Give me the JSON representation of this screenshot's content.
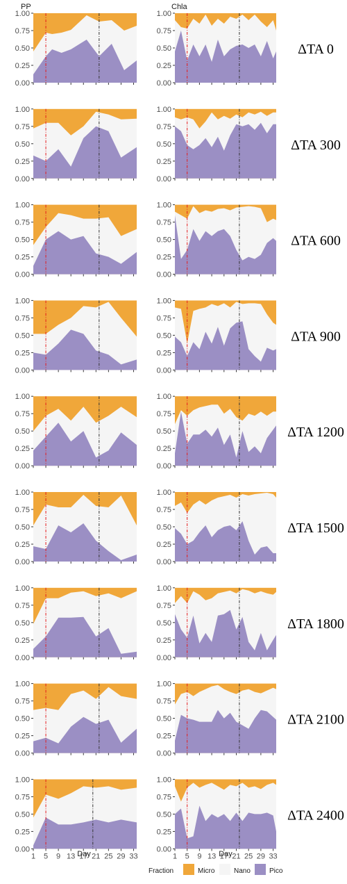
{
  "chart_data": {
    "type": "area",
    "stacked": true,
    "normalized": true,
    "column_titles": [
      "PP",
      "Chla"
    ],
    "xlabel": "Day",
    "x_ticks": [
      1,
      5,
      9,
      13,
      17,
      21,
      25,
      29,
      33
    ],
    "y_ticks": [
      "0.00",
      "0.25",
      "0.50",
      "0.75",
      "1.00"
    ],
    "xlim": [
      1,
      34
    ],
    "ylim": [
      0,
      1
    ],
    "legend": {
      "title": "Fraction",
      "position": "bottom",
      "entries": [
        "Micro",
        "Nano",
        "Pico"
      ]
    },
    "colors": {
      "Micro": "#f0a73a",
      "Nano": "#f5f5f5",
      "Pico": "#9b8fc4",
      "red_line": "#e41a1c",
      "black_line": "#333333"
    },
    "rows": [
      {
        "label": "ΔTA 0",
        "panels": [
          {
            "x": [
              1,
              5,
              7,
              10,
              13,
              18,
              22,
              26,
              30,
              34
            ],
            "pico": [
              0.12,
              0.38,
              0.48,
              0.43,
              0.48,
              0.62,
              0.38,
              0.56,
              0.18,
              0.32
            ],
            "pico_nano": [
              0.45,
              0.72,
              0.7,
              0.72,
              0.76,
              0.97,
              0.88,
              0.9,
              0.75,
              0.82
            ],
            "red_line": 5,
            "black_line": 22
          },
          {
            "x": [
              1,
              3,
              5,
              7,
              9,
              11,
              13,
              15,
              17,
              19,
              21,
              23,
              25,
              27,
              29,
              31,
              33,
              34
            ],
            "pico": [
              0.45,
              0.75,
              0.32,
              0.55,
              0.38,
              0.55,
              0.3,
              0.62,
              0.38,
              0.48,
              0.53,
              0.55,
              0.5,
              0.55,
              0.38,
              0.6,
              0.35,
              0.45
            ],
            "pico_nano": [
              0.9,
              0.8,
              0.78,
              0.92,
              0.85,
              0.98,
              0.82,
              0.92,
              0.85,
              0.95,
              0.92,
              0.98,
              0.9,
              0.98,
              0.88,
              0.8,
              0.9,
              0.75
            ],
            "red_line": 5,
            "black_line": 22
          }
        ]
      },
      {
        "label": "ΔTA 300",
        "panels": [
          {
            "x": [
              1,
              5,
              9,
              13,
              17,
              21,
              25,
              29,
              34
            ],
            "pico": [
              0.33,
              0.25,
              0.42,
              0.17,
              0.58,
              0.75,
              0.68,
              0.3,
              0.45
            ],
            "pico_nano": [
              0.72,
              0.8,
              0.8,
              0.62,
              0.75,
              0.96,
              0.92,
              0.85,
              0.86
            ],
            "red_line": 5,
            "black_line": 22
          },
          {
            "x": [
              1,
              3,
              5,
              7,
              9,
              11,
              13,
              15,
              17,
              19,
              21,
              23,
              25,
              27,
              29,
              31,
              33,
              34
            ],
            "pico": [
              0.75,
              0.68,
              0.48,
              0.42,
              0.48,
              0.58,
              0.45,
              0.6,
              0.4,
              0.62,
              0.78,
              0.75,
              0.78,
              0.7,
              0.8,
              0.65,
              0.78,
              0.78
            ],
            "pico_nano": [
              0.88,
              0.85,
              0.88,
              0.85,
              0.72,
              0.82,
              0.95,
              0.85,
              0.9,
              0.86,
              0.92,
              0.88,
              0.95,
              0.92,
              0.96,
              0.9,
              0.95,
              0.95
            ],
            "red_line": 5,
            "black_line": 22
          }
        ]
      },
      {
        "label": "ΔTA 600",
        "panels": [
          {
            "x": [
              1,
              5,
              9,
              13,
              17,
              21,
              25,
              29,
              34
            ],
            "pico": [
              0.12,
              0.5,
              0.62,
              0.5,
              0.55,
              0.3,
              0.25,
              0.15,
              0.32
            ],
            "pico_nano": [
              0.42,
              0.68,
              0.88,
              0.85,
              0.8,
              0.8,
              0.82,
              0.55,
              0.65
            ],
            "red_line": 5,
            "black_line": 22
          },
          {
            "x": [
              1,
              3,
              5,
              7,
              9,
              11,
              13,
              15,
              17,
              19,
              21,
              23,
              25,
              27,
              29,
              31,
              33,
              34
            ],
            "pico": [
              0.85,
              0.22,
              0.35,
              0.65,
              0.48,
              0.62,
              0.55,
              0.62,
              0.65,
              0.55,
              0.35,
              0.2,
              0.25,
              0.22,
              0.28,
              0.45,
              0.52,
              0.48
            ],
            "pico_nano": [
              0.9,
              0.85,
              0.8,
              0.98,
              0.88,
              0.92,
              0.9,
              0.94,
              0.95,
              0.92,
              0.96,
              0.97,
              0.98,
              0.97,
              0.95,
              0.75,
              0.8,
              0.78
            ],
            "red_line": 5,
            "black_line": 22
          }
        ]
      },
      {
        "label": "ΔTA 900",
        "panels": [
          {
            "x": [
              1,
              5,
              9,
              13,
              17,
              21,
              25,
              29,
              34
            ],
            "pico": [
              0.25,
              0.22,
              0.38,
              0.58,
              0.52,
              0.28,
              0.22,
              0.08,
              0.15
            ],
            "pico_nano": [
              0.52,
              0.52,
              0.65,
              0.75,
              0.92,
              0.9,
              0.98,
              0.75,
              0.48
            ],
            "red_line": 5,
            "black_line": 22
          },
          {
            "x": [
              1,
              3,
              5,
              7,
              9,
              11,
              13,
              15,
              17,
              19,
              21,
              23,
              25,
              27,
              29,
              31,
              33,
              34
            ],
            "pico": [
              0.48,
              0.4,
              0.2,
              0.4,
              0.3,
              0.55,
              0.38,
              0.62,
              0.35,
              0.6,
              0.68,
              0.7,
              0.3,
              0.2,
              0.12,
              0.32,
              0.28,
              0.3
            ],
            "pico_nano": [
              0.9,
              0.88,
              0.38,
              0.85,
              0.88,
              0.9,
              0.95,
              0.92,
              0.96,
              0.9,
              0.98,
              0.95,
              0.96,
              0.96,
              0.95,
              0.8,
              0.68,
              0.65
            ],
            "red_line": 5,
            "black_line": 22
          }
        ]
      },
      {
        "label": "ΔTA 1200",
        "panels": [
          {
            "x": [
              1,
              5,
              9,
              13,
              17,
              21,
              25,
              29,
              34
            ],
            "pico": [
              0.22,
              0.42,
              0.62,
              0.35,
              0.5,
              0.12,
              0.22,
              0.48,
              0.3
            ],
            "pico_nano": [
              0.5,
              0.72,
              0.82,
              0.65,
              0.85,
              0.62,
              0.72,
              0.85,
              0.7
            ],
            "red_line": 5,
            "black_line": 22
          },
          {
            "x": [
              1,
              3,
              5,
              7,
              9,
              11,
              13,
              15,
              17,
              19,
              21,
              23,
              25,
              27,
              29,
              31,
              33,
              34
            ],
            "pico": [
              0.18,
              0.78,
              0.32,
              0.45,
              0.45,
              0.52,
              0.42,
              0.55,
              0.3,
              0.45,
              0.12,
              0.5,
              0.2,
              0.28,
              0.18,
              0.4,
              0.52,
              0.58
            ],
            "pico_nano": [
              0.6,
              0.8,
              0.72,
              0.8,
              0.84,
              0.86,
              0.88,
              0.88,
              0.75,
              0.82,
              0.7,
              0.65,
              0.75,
              0.72,
              0.78,
              0.72,
              0.78,
              0.78
            ],
            "red_line": 5,
            "black_line": 22
          }
        ]
      },
      {
        "label": "ΔTA 1500",
        "panels": [
          {
            "x": [
              1,
              5,
              9,
              13,
              17,
              21,
              25,
              29,
              34
            ],
            "pico": [
              0.22,
              0.18,
              0.52,
              0.42,
              0.55,
              0.3,
              0.15,
              0.02,
              0.1
            ],
            "pico_nano": [
              0.52,
              0.82,
              0.78,
              0.78,
              0.96,
              0.8,
              0.78,
              0.95,
              0.52
            ],
            "red_line": 5,
            "black_line": 22
          },
          {
            "x": [
              1,
              3,
              5,
              7,
              9,
              11,
              13,
              15,
              17,
              19,
              21,
              23,
              25,
              27,
              29,
              31,
              33,
              34
            ],
            "pico": [
              0.48,
              0.4,
              0.25,
              0.3,
              0.42,
              0.52,
              0.35,
              0.45,
              0.5,
              0.52,
              0.45,
              0.58,
              0.3,
              0.1,
              0.2,
              0.22,
              0.12,
              0.12
            ],
            "pico_nano": [
              0.8,
              0.85,
              0.7,
              0.82,
              0.88,
              0.82,
              0.88,
              0.92,
              0.94,
              0.96,
              0.92,
              0.97,
              0.95,
              0.97,
              0.98,
              0.99,
              0.97,
              0.92
            ],
            "red_line": 5,
            "black_line": 22
          }
        ]
      },
      {
        "label": "ΔTA 1800",
        "panels": [
          {
            "x": [
              1,
              5,
              9,
              13,
              17,
              21,
              25,
              29,
              34
            ],
            "pico": [
              0.12,
              0.3,
              0.57,
              0.57,
              0.58,
              0.3,
              0.42,
              0.05,
              0.08
            ],
            "pico_nano": [
              0.48,
              0.85,
              0.85,
              0.93,
              0.95,
              0.88,
              0.92,
              0.85,
              0.95
            ],
            "red_line": 5,
            "black_line": 22
          },
          {
            "x": [
              1,
              3,
              5,
              7,
              9,
              11,
              13,
              15,
              17,
              19,
              21,
              23,
              25,
              27,
              29,
              31,
              33,
              34
            ],
            "pico": [
              0.62,
              0.4,
              0.28,
              0.6,
              0.2,
              0.35,
              0.22,
              0.6,
              0.62,
              0.68,
              0.4,
              0.58,
              0.22,
              0.1,
              0.35,
              0.1,
              0.25,
              0.32
            ],
            "pico_nano": [
              0.78,
              0.88,
              0.78,
              0.95,
              0.9,
              0.82,
              0.85,
              0.92,
              0.94,
              0.96,
              0.92,
              0.98,
              0.96,
              0.92,
              0.95,
              0.92,
              0.9,
              0.94
            ],
            "red_line": 5,
            "black_line": 22
          }
        ]
      },
      {
        "label": "ΔTA 2100",
        "panels": [
          {
            "x": [
              1,
              5,
              9,
              13,
              17,
              21,
              25,
              29,
              34
            ],
            "pico": [
              0.17,
              0.22,
              0.14,
              0.38,
              0.52,
              0.42,
              0.48,
              0.15,
              0.35
            ],
            "pico_nano": [
              0.62,
              0.65,
              0.62,
              0.85,
              0.9,
              0.78,
              0.95,
              0.82,
              0.78
            ],
            "red_line": 5,
            "black_line": 22
          },
          {
            "x": [
              1,
              3,
              5,
              7,
              9,
              11,
              13,
              15,
              17,
              19,
              21,
              23,
              25,
              27,
              29,
              31,
              33,
              34
            ],
            "pico": [
              0.18,
              0.55,
              0.5,
              0.48,
              0.45,
              0.45,
              0.45,
              0.62,
              0.5,
              0.58,
              0.45,
              0.4,
              0.35,
              0.5,
              0.62,
              0.6,
              0.52,
              0.48
            ],
            "pico_nano": [
              0.7,
              0.85,
              0.88,
              0.82,
              0.88,
              0.92,
              0.96,
              0.98,
              0.92,
              0.88,
              0.85,
              0.9,
              0.92,
              0.88,
              0.86,
              0.9,
              0.94,
              0.92
            ],
            "red_line": 5,
            "black_line": 22
          }
        ]
      },
      {
        "label": "ΔTA 2400",
        "panels": [
          {
            "x": [
              1,
              5,
              9,
              13,
              17,
              21,
              25,
              29,
              34
            ],
            "pico": [
              0.05,
              0.45,
              0.35,
              0.35,
              0.38,
              0.42,
              0.38,
              0.42,
              0.38
            ],
            "pico_nano": [
              0.45,
              0.78,
              0.72,
              0.8,
              0.9,
              0.88,
              0.9,
              0.85,
              0.88
            ],
            "red_line": 5,
            "black_line": 20
          },
          {
            "x": [
              1,
              3,
              5,
              7,
              9,
              11,
              13,
              15,
              17,
              19,
              21,
              23,
              25,
              27,
              29,
              31,
              33,
              34
            ],
            "pico": [
              0.5,
              0.58,
              0.15,
              0.18,
              0.62,
              0.4,
              0.5,
              0.45,
              0.5,
              0.4,
              0.52,
              0.4,
              0.52,
              0.5,
              0.5,
              0.52,
              0.48,
              0.25
            ],
            "pico_nano": [
              0.9,
              0.68,
              0.88,
              0.95,
              0.88,
              0.92,
              0.95,
              0.9,
              0.85,
              0.92,
              0.9,
              0.95,
              0.88,
              0.9,
              0.86,
              0.92,
              0.95,
              0.92
            ],
            "red_line": 5,
            "black_line": 22
          }
        ]
      }
    ]
  }
}
